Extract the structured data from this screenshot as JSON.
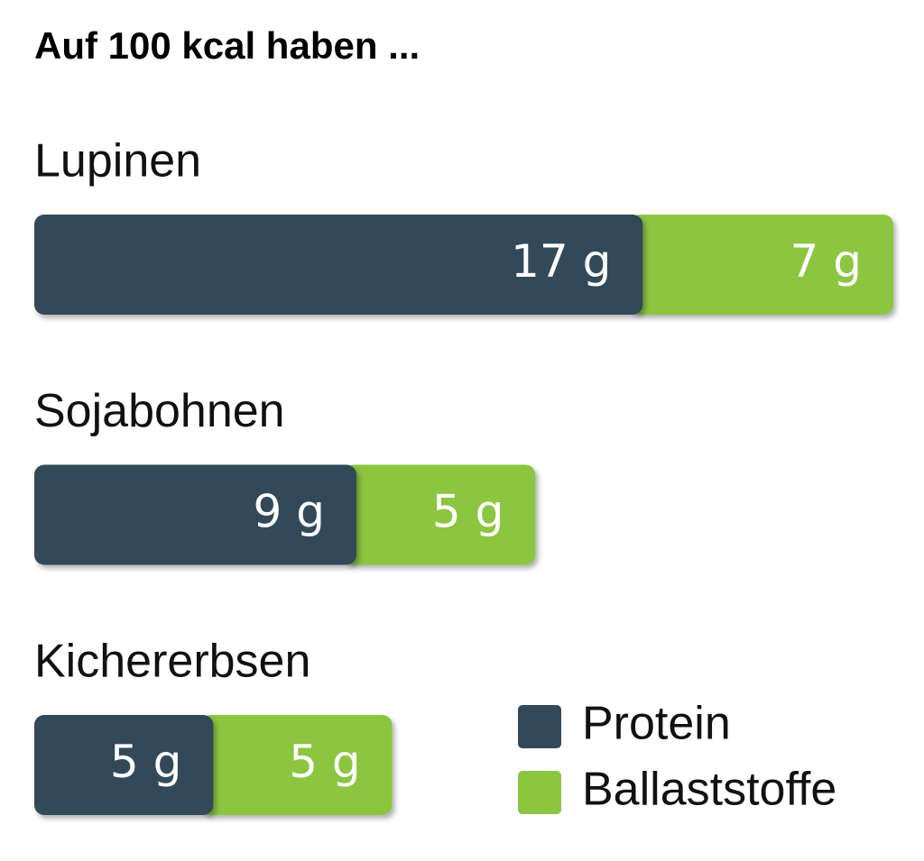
{
  "chart_data": {
    "type": "bar",
    "orientation": "horizontal",
    "stacked": true,
    "title": "Auf 100 kcal haben ...",
    "categories": [
      "Lupinen",
      "Sojabohnen",
      "Kichererbsen"
    ],
    "series": [
      {
        "name": "Protein",
        "color": "#33495a",
        "values": [
          17,
          9,
          5
        ],
        "value_labels": [
          "17 g",
          "9 g",
          "5 g"
        ]
      },
      {
        "name": "Ballaststoffe",
        "color": "#8cc641",
        "values": [
          7,
          5,
          5
        ],
        "value_labels": [
          "7 g",
          "5 g",
          "5 g"
        ]
      }
    ],
    "legend": "lower right"
  }
}
